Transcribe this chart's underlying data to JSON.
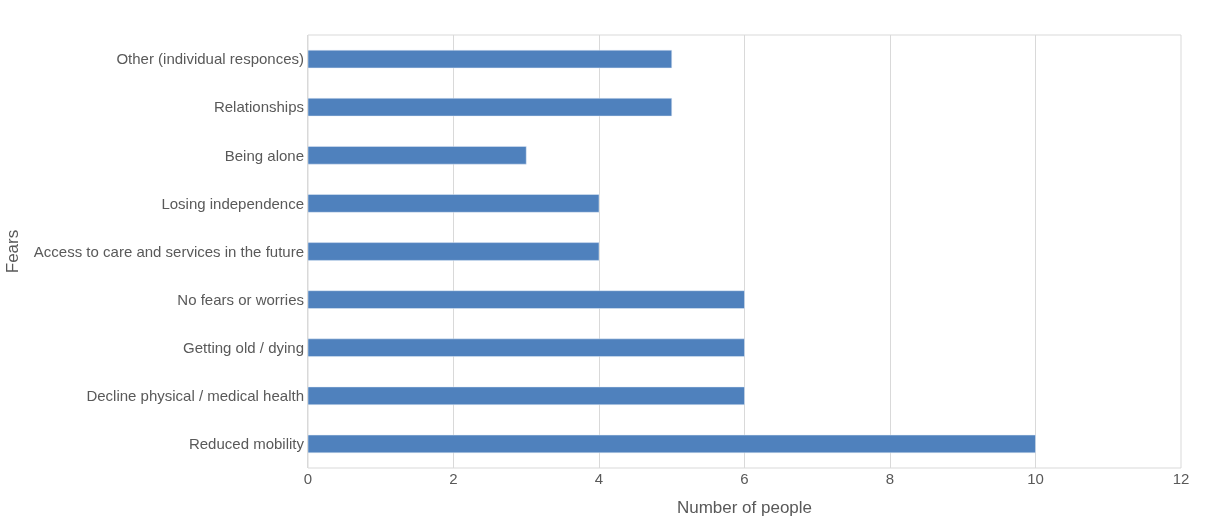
{
  "chart_data": {
    "type": "bar",
    "orientation": "horizontal",
    "xlabel": "Number of people",
    "ylabel": "Fears",
    "categories": [
      "Other (individual responces)",
      "Relationships",
      "Being alone",
      "Losing independence",
      "Access to care and services in the future",
      "No fears or worries",
      "Getting old / dying",
      "Decline physical / medical health",
      "Reduced mobility"
    ],
    "values": [
      5,
      5,
      3,
      4,
      4,
      6,
      6,
      6,
      10
    ],
    "color": "#4f81bd",
    "xlim": [
      0,
      12
    ],
    "xticks": [
      0,
      2,
      4,
      6,
      8,
      10,
      12
    ],
    "grid": "x"
  }
}
